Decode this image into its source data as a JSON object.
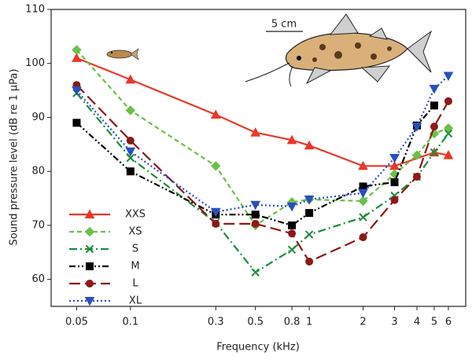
{
  "chart_data": {
    "type": "line",
    "x_label": "Frequency (kHz)",
    "y_label": "Sound pressure level (dB re 1 µPa)",
    "annotations": [
      "5 cm"
    ],
    "log_x": true,
    "xlim": [
      0.036,
      7.5
    ],
    "ylim": [
      55,
      110
    ],
    "xticks": [
      0.05,
      0.1,
      0.3,
      0.5,
      0.8,
      1,
      2,
      3,
      4,
      5,
      6
    ],
    "yticks": [
      60,
      70,
      80,
      90,
      100,
      110
    ],
    "series": [
      {
        "name": "XXS",
        "color": "#e8392b",
        "dash": "none",
        "marker": "triangle",
        "x": [
          0.05,
          0.1,
          0.3,
          0.5,
          0.8,
          1,
          2,
          3,
          5,
          6
        ],
        "values": [
          101,
          97,
          90.5,
          87.2,
          85.8,
          84.8,
          81,
          81,
          83.5,
          83
        ]
      },
      {
        "name": "XS",
        "color": "#6cc04a",
        "dash": "6,4",
        "marker": "diamond",
        "x": [
          0.05,
          0.1,
          0.3,
          0.5,
          0.8,
          1,
          2,
          3,
          4,
          5,
          6
        ],
        "values": [
          102.5,
          91.3,
          81,
          70,
          74.3,
          74.8,
          74.5,
          79.5,
          83,
          87,
          88
        ]
      },
      {
        "name": "S",
        "color": "#1e8c3c",
        "dash": "10,4,2,4",
        "marker": "x",
        "x": [
          0.05,
          0.1,
          0.3,
          0.5,
          0.8,
          1,
          2,
          3,
          4,
          5,
          6
        ],
        "values": [
          94.5,
          82.5,
          70.5,
          61.3,
          65.5,
          68.3,
          71.5,
          75.5,
          79,
          83.5,
          87
        ]
      },
      {
        "name": "M",
        "color": "#000000",
        "dash": "8,3,2,3,2,3",
        "marker": "square",
        "x": [
          0.05,
          0.1,
          0.3,
          0.5,
          0.8,
          1,
          2,
          3,
          4,
          5
        ],
        "values": [
          89,
          80,
          72,
          72,
          70,
          72.3,
          77.2,
          78,
          88.5,
          92.2
        ]
      },
      {
        "name": "L",
        "color": "#8b1a1a",
        "dash": "14,6",
        "marker": "circle",
        "x": [
          0.05,
          0.1,
          0.3,
          0.5,
          0.8,
          1,
          2,
          3,
          4,
          5,
          6
        ],
        "values": [
          96,
          85.7,
          70.3,
          70.3,
          68.5,
          63.3,
          67.8,
          74.7,
          79,
          88.3,
          93
        ]
      },
      {
        "name": "XL",
        "color": "#2a4fbf",
        "dash": "2,3",
        "marker": "triangle-down",
        "x": [
          0.05,
          0.1,
          0.3,
          0.5,
          0.8,
          1,
          2,
          3,
          4,
          5,
          6
        ],
        "values": [
          95,
          83.7,
          72.5,
          73.8,
          73.5,
          74.8,
          76,
          82.5,
          88.3,
          95.3,
          97.7
        ]
      }
    ]
  }
}
